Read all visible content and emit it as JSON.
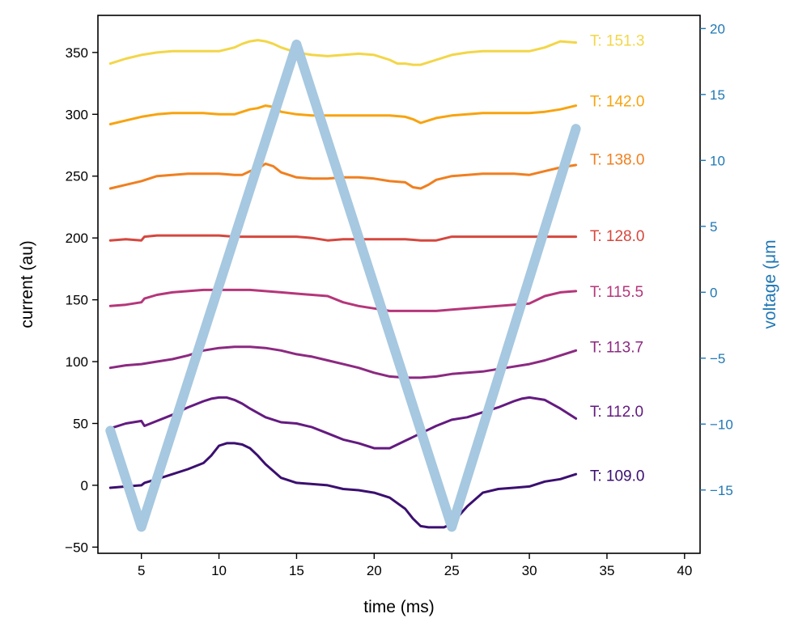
{
  "chart_data": {
    "type": "line",
    "xlabel": "time (ms)",
    "ylabel": "current (au)",
    "y2label": "voltage (μm",
    "xlim": [
      2.2,
      41
    ],
    "ylim": [
      -55,
      380
    ],
    "y2lim": [
      -19.8,
      21
    ],
    "xticks": [
      5,
      10,
      15,
      20,
      25,
      30,
      35,
      40
    ],
    "yticks": [
      -50,
      0,
      50,
      100,
      150,
      200,
      250,
      300,
      350
    ],
    "y2ticks": [
      -15,
      -10,
      -5,
      0,
      5,
      10,
      15,
      20
    ],
    "grid": false,
    "series": [
      {
        "name": "T: 109.0",
        "label_value": 8,
        "color": "#3b0f70",
        "x": [
          3,
          4,
          5,
          5.2,
          6,
          7,
          8,
          9,
          9.5,
          10,
          10.5,
          11,
          11.5,
          12,
          12.5,
          13,
          14,
          15,
          16,
          17,
          18,
          19,
          20,
          21,
          22,
          22.5,
          23,
          23.5,
          24,
          24.5,
          25,
          26,
          27,
          28,
          29,
          30,
          31,
          32,
          33
        ],
        "y": [
          -2,
          -1,
          0,
          2,
          5,
          9,
          13,
          18,
          24,
          32,
          34,
          34,
          33,
          30,
          24,
          17,
          6,
          2,
          1,
          0,
          -3,
          -4,
          -6,
          -10,
          -19,
          -27,
          -33,
          -34,
          -34,
          -34,
          -31,
          -17,
          -6,
          -3,
          -2,
          -1,
          3,
          5,
          9
        ]
      },
      {
        "name": "T: 112.0",
        "label_value": 60,
        "color": "#641a80",
        "x": [
          3,
          4,
          5,
          5.2,
          6,
          7,
          8,
          9,
          9.5,
          10,
          10.5,
          11,
          11.5,
          12,
          13,
          14,
          15,
          16,
          17,
          18,
          19,
          20,
          21,
          22,
          23,
          24,
          25,
          26,
          27,
          28,
          29,
          29.5,
          30,
          31,
          32,
          33
        ],
        "y": [
          46,
          50,
          52,
          48,
          52,
          57,
          63,
          68,
          70,
          71,
          71,
          69,
          66,
          62,
          55,
          51,
          50,
          47,
          42,
          37,
          34,
          30,
          30,
          36,
          42,
          48,
          53,
          55,
          59,
          63,
          68,
          70,
          71,
          69,
          62,
          54
        ]
      },
      {
        "name": "T: 113.7",
        "label_value": 112,
        "color": "#8c2981",
        "x": [
          3,
          4,
          5,
          6,
          7,
          8,
          9,
          10,
          11,
          12,
          13,
          14,
          15,
          16,
          17,
          18,
          19,
          20,
          21,
          22,
          23,
          24,
          25,
          26,
          27,
          28,
          29,
          30,
          31,
          32,
          33
        ],
        "y": [
          95,
          97,
          98,
          100,
          102,
          105,
          109,
          111,
          112,
          112,
          111,
          109,
          106,
          104,
          101,
          98,
          95,
          91,
          88,
          87,
          87,
          88,
          90,
          91,
          92,
          94,
          96,
          98,
          101,
          105,
          109
        ]
      },
      {
        "name": "T: 115.5",
        "label_value": 157,
        "color": "#b5367a",
        "x": [
          3,
          4,
          5,
          5.2,
          6,
          7,
          8,
          9,
          10,
          11,
          12,
          13,
          14,
          15,
          16,
          17,
          18,
          19,
          20,
          21,
          22,
          23,
          24,
          25,
          26,
          27,
          28,
          29,
          30,
          31,
          32,
          33
        ],
        "y": [
          145,
          146,
          148,
          151,
          154,
          156,
          157,
          158,
          158,
          158,
          158,
          157,
          156,
          155,
          154,
          153,
          148,
          145,
          143,
          141,
          141,
          141,
          141,
          142,
          143,
          144,
          145,
          146,
          147,
          153,
          156,
          157
        ]
      },
      {
        "name": "T: 128.0",
        "label_value": 202,
        "color": "#d5473e",
        "x": [
          3,
          4,
          5,
          5.2,
          6,
          7,
          8,
          9,
          10,
          11,
          12,
          13,
          14,
          15,
          16,
          17,
          18,
          19,
          20,
          21,
          22,
          23,
          24,
          25,
          26,
          27,
          28,
          29,
          30,
          31,
          32,
          33
        ],
        "y": [
          198,
          199,
          198,
          201,
          202,
          202,
          202,
          202,
          202,
          201,
          201,
          201,
          201,
          201,
          200,
          198,
          199,
          199,
          199,
          199,
          199,
          198,
          198,
          201,
          201,
          201,
          201,
          201,
          201,
          201,
          201,
          201
        ]
      },
      {
        "name": "T: 138.0",
        "label_value": 264,
        "color": "#f07f1f",
        "x": [
          3,
          4,
          5,
          6,
          7,
          8,
          9,
          10,
          11,
          11.5,
          12,
          12.5,
          13,
          13.5,
          14,
          15,
          16,
          17,
          18,
          19,
          20,
          21,
          22,
          22.5,
          23,
          23.5,
          24,
          25,
          26,
          27,
          28,
          29,
          30,
          31,
          32,
          33
        ],
        "y": [
          240,
          243,
          246,
          250,
          251,
          252,
          252,
          252,
          251,
          251,
          254,
          256,
          260,
          258,
          253,
          249,
          248,
          248,
          249,
          249,
          248,
          246,
          245,
          241,
          240,
          243,
          247,
          250,
          251,
          252,
          252,
          252,
          251,
          254,
          257,
          259
        ]
      },
      {
        "name": "T: 142.0",
        "label_value": 311,
        "color": "#f8a30f",
        "x": [
          3,
          4,
          5,
          6,
          7,
          8,
          9,
          10,
          11,
          12,
          12.5,
          13,
          13.5,
          14,
          15,
          16,
          17,
          18,
          19,
          20,
          21,
          22,
          22.5,
          23,
          23.5,
          24,
          25,
          26,
          27,
          28,
          29,
          30,
          31,
          32,
          33
        ],
        "y": [
          292,
          295,
          298,
          300,
          301,
          301,
          301,
          300,
          300,
          304,
          305,
          307,
          306,
          302,
          300,
          299,
          299,
          299,
          299,
          299,
          299,
          298,
          296,
          293,
          295,
          297,
          299,
          300,
          301,
          301,
          301,
          301,
          302,
          304,
          307
        ]
      },
      {
        "name": "T: 151.3",
        "label_value": 360,
        "color": "#f3d648",
        "x": [
          3,
          4,
          5,
          6,
          7,
          8,
          9,
          10,
          11,
          11.5,
          12,
          12.5,
          13,
          13.5,
          14,
          15,
          16,
          17,
          18,
          19,
          20,
          21,
          21.5,
          22,
          22.5,
          23,
          24,
          25,
          26,
          27,
          28,
          29,
          30,
          31,
          32,
          33
        ],
        "y": [
          341,
          345,
          348,
          350,
          351,
          351,
          351,
          351,
          354,
          357,
          359,
          360,
          359,
          357,
          354,
          350,
          348,
          347,
          348,
          349,
          348,
          344,
          341,
          341,
          340,
          340,
          344,
          348,
          350,
          351,
          351,
          351,
          351,
          354,
          359,
          358
        ]
      }
    ],
    "voltage_series": {
      "color": "#a6c8e0",
      "x": [
        3,
        5,
        15,
        25,
        33
      ],
      "y": [
        -10.5,
        -17.8,
        18.8,
        -17.8,
        12.4
      ]
    }
  }
}
